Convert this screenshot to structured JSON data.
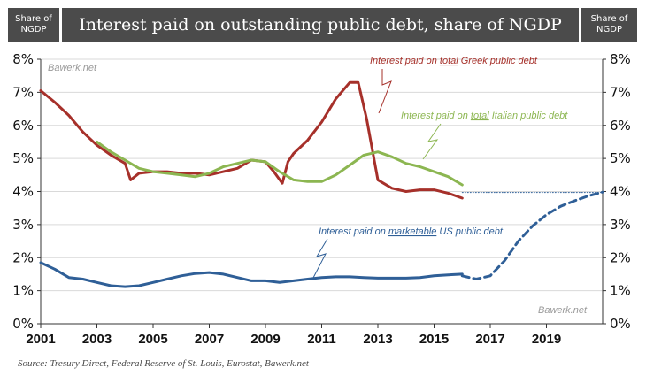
{
  "header": {
    "left_label_line1": "Share of",
    "left_label_line2": "NGDP",
    "title": "Interest paid on outstanding public debt, share of NGDP",
    "right_label_line1": "Share of",
    "right_label_line2": "NGDP"
  },
  "watermark_top": "Bawerk.net",
  "watermark_bottom": "Bawerk.net",
  "source": "Source: Tresury Direct, Federal Reserve of St. Louis, Eurostat, Bawerk.net",
  "annotations": {
    "greek_prefix": "Interest paid on ",
    "greek_em": "total",
    "greek_suffix": " Greek public debt",
    "italian_prefix": "Interest paid on ",
    "italian_em": "total",
    "italian_suffix": " Italian public debt",
    "us_prefix": "Interest paid on ",
    "us_em": "marketable",
    "us_suffix": " US public debt"
  },
  "colors": {
    "greece": "#a6302a",
    "italy": "#8cb651",
    "us": "#2f5f97",
    "grid": "#d9d9d9",
    "header_bg": "#4b4b4b"
  },
  "chart_data": {
    "type": "line",
    "title": "Interest paid on outstanding public debt, share of NGDP",
    "xlim": [
      2001,
      2021
    ],
    "ylim": [
      0,
      8
    ],
    "x_ticks": [
      "2001",
      "2003",
      "2005",
      "2007",
      "2009",
      "2011",
      "2013",
      "2015",
      "2017",
      "2019"
    ],
    "y_ticks": [
      "0%",
      "1%",
      "2%",
      "3%",
      "4%",
      "5%",
      "6%",
      "7%",
      "8%"
    ],
    "grid": "horizontal",
    "series": [
      {
        "name": "Interest paid on total Greek public debt",
        "x": [
          2001.0,
          2001.5,
          2002.0,
          2002.5,
          2003.0,
          2003.5,
          2004.0,
          2004.2,
          2004.5,
          2005.0,
          2005.5,
          2006.0,
          2006.5,
          2007.0,
          2007.5,
          2008.0,
          2008.5,
          2009.0,
          2009.3,
          2009.6,
          2009.8,
          2010.0,
          2010.5,
          2011.0,
          2011.5,
          2012.0,
          2012.3,
          2012.6,
          2013.0,
          2013.5,
          2014.0,
          2014.5,
          2015.0,
          2015.5,
          2016.0
        ],
        "y": [
          7.05,
          6.7,
          6.3,
          5.8,
          5.4,
          5.1,
          4.85,
          4.35,
          4.55,
          4.6,
          4.6,
          4.55,
          4.55,
          4.5,
          4.6,
          4.7,
          4.95,
          4.9,
          4.6,
          4.25,
          4.9,
          5.15,
          5.55,
          6.1,
          6.8,
          7.3,
          7.3,
          6.2,
          4.35,
          4.1,
          4.0,
          4.05,
          4.05,
          3.95,
          3.8
        ]
      },
      {
        "name": "Interest paid on total Italian public debt",
        "x": [
          2003.0,
          2003.5,
          2004.0,
          2004.5,
          2005.0,
          2005.5,
          2006.0,
          2006.5,
          2007.0,
          2007.5,
          2008.0,
          2008.5,
          2009.0,
          2009.5,
          2010.0,
          2010.5,
          2011.0,
          2011.5,
          2012.0,
          2012.5,
          2013.0,
          2013.5,
          2014.0,
          2014.5,
          2015.0,
          2015.5,
          2016.0
        ],
        "y": [
          5.5,
          5.2,
          4.95,
          4.7,
          4.6,
          4.55,
          4.5,
          4.45,
          4.55,
          4.75,
          4.85,
          4.95,
          4.9,
          4.6,
          4.35,
          4.3,
          4.3,
          4.5,
          4.8,
          5.1,
          5.2,
          5.05,
          4.85,
          4.75,
          4.6,
          4.45,
          4.2
        ]
      },
      {
        "name": "Interest paid on marketable US public debt",
        "x": [
          2001.0,
          2001.5,
          2002.0,
          2002.5,
          2003.0,
          2003.5,
          2004.0,
          2004.5,
          2005.0,
          2005.5,
          2006.0,
          2006.5,
          2007.0,
          2007.5,
          2008.0,
          2008.5,
          2009.0,
          2009.5,
          2010.0,
          2010.5,
          2011.0,
          2011.5,
          2012.0,
          2012.5,
          2013.0,
          2013.5,
          2014.0,
          2014.5,
          2015.0,
          2015.5,
          2016.0
        ],
        "y": [
          1.85,
          1.65,
          1.4,
          1.35,
          1.25,
          1.15,
          1.12,
          1.15,
          1.25,
          1.35,
          1.45,
          1.52,
          1.55,
          1.5,
          1.4,
          1.3,
          1.3,
          1.25,
          1.3,
          1.35,
          1.4,
          1.42,
          1.42,
          1.4,
          1.38,
          1.38,
          1.38,
          1.4,
          1.45,
          1.48,
          1.5
        ]
      },
      {
        "name": "US projection",
        "style": "dashed",
        "x": [
          2016.0,
          2016.5,
          2017.0,
          2017.5,
          2018.0,
          2018.5,
          2019.0,
          2019.5,
          2020.0,
          2020.5,
          2021.0
        ],
        "y": [
          1.45,
          1.35,
          1.45,
          1.9,
          2.5,
          2.95,
          3.3,
          3.55,
          3.72,
          3.87,
          3.98
        ]
      },
      {
        "name": "4% reference",
        "style": "dotted",
        "x": [
          2016.0,
          2021.0
        ],
        "y": [
          3.97,
          3.97
        ]
      }
    ]
  }
}
